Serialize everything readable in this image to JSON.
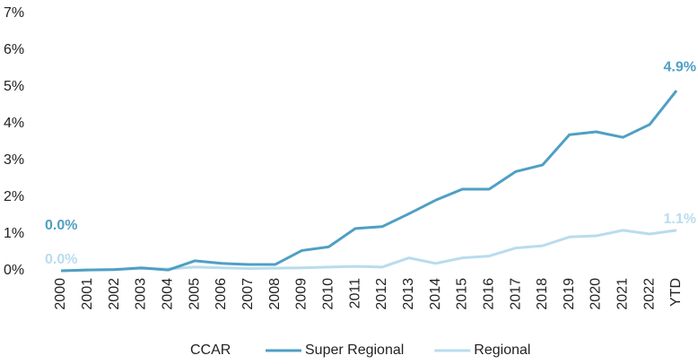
{
  "chart_data": {
    "type": "line",
    "categories": [
      "2000",
      "2001",
      "2002",
      "2003",
      "2004",
      "2005",
      "2006",
      "2007",
      "2008",
      "2009",
      "2010",
      "2011",
      "2012",
      "2013",
      "2014",
      "2015",
      "2016",
      "2017",
      "2018",
      "2019",
      "2020",
      "2021",
      "2022",
      "YTD"
    ],
    "series": [
      {
        "name": "Super Regional",
        "color": "#4f9fc4",
        "values": [
          0.0,
          0.02,
          0.03,
          0.08,
          0.02,
          0.27,
          0.2,
          0.17,
          0.17,
          0.55,
          0.65,
          1.15,
          1.2,
          1.55,
          1.92,
          2.22,
          2.22,
          2.7,
          2.88,
          3.7,
          3.78,
          3.63,
          3.98,
          4.9
        ],
        "value_labels": [
          "0.0%",
          null,
          null,
          null,
          null,
          null,
          null,
          null,
          null,
          null,
          null,
          null,
          null,
          null,
          null,
          null,
          null,
          null,
          null,
          null,
          null,
          null,
          null,
          "4.9%"
        ]
      },
      {
        "name": "Regional",
        "color": "#b9dcee",
        "values": [
          0.0,
          0.02,
          0.04,
          0.06,
          0.05,
          0.1,
          0.08,
          0.06,
          0.07,
          0.08,
          0.1,
          0.12,
          0.1,
          0.35,
          0.2,
          0.35,
          0.4,
          0.62,
          0.68,
          0.92,
          0.95,
          1.1,
          1.0,
          1.1
        ],
        "value_labels": [
          "0.0%",
          null,
          null,
          null,
          null,
          null,
          null,
          null,
          null,
          null,
          null,
          null,
          null,
          null,
          null,
          null,
          null,
          null,
          null,
          null,
          null,
          null,
          null,
          "1.1%"
        ]
      }
    ],
    "legend_title": "CCAR",
    "ylim": [
      0,
      7
    ],
    "yticks": [
      {
        "value": 0,
        "label": "0%"
      },
      {
        "value": 1,
        "label": "1%"
      },
      {
        "value": 2,
        "label": "2%"
      },
      {
        "value": 3,
        "label": "3%"
      },
      {
        "value": 4,
        "label": "4%"
      },
      {
        "value": 5,
        "label": "5%"
      },
      {
        "value": 6,
        "label": "6%"
      },
      {
        "value": 7,
        "label": "7%"
      }
    ],
    "grid": false
  }
}
